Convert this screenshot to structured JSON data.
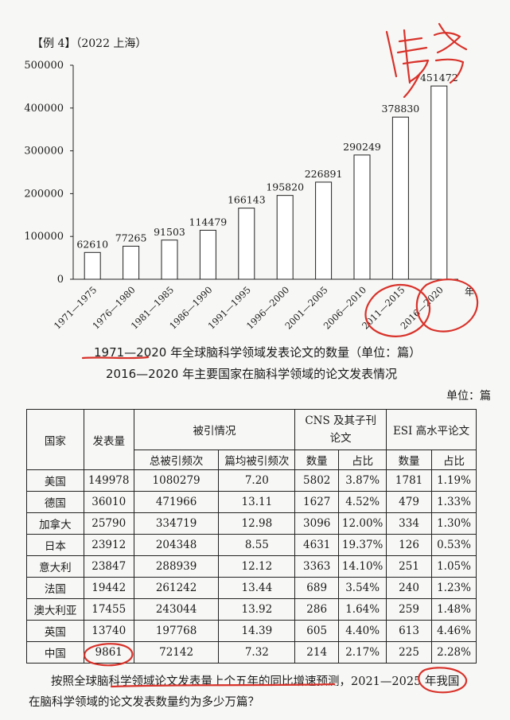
{
  "header": "【例 4】（2022  上海）",
  "chart_data": {
    "type": "bar",
    "title": "1971—2020 年全球脑科学领域发表论文的数量（单位：篇）",
    "categories": [
      "1971—1975",
      "1976—1980",
      "1981—1985",
      "1986—1990",
      "1991—1995",
      "1996—2000",
      "2001—2005",
      "2006—2010",
      "2011—2015",
      "2016—2020"
    ],
    "values": [
      62610,
      77265,
      91503,
      114479,
      166143,
      195820,
      226891,
      290249,
      378830,
      451472
    ],
    "x_suffix": "年",
    "yticks": [
      "0",
      "100000",
      "200000",
      "300000",
      "400000",
      "500000"
    ],
    "ylim": [
      0,
      500000
    ],
    "grid": false
  },
  "caption1": "1971—2020 年全球脑科学领域发表论文的数量（单位：篇）",
  "caption2": "2016—2020 年主要国家在脑科学领域的论文发表情况",
  "unit_label": "单位：篇",
  "table": {
    "col_country": "国家",
    "col_count": "发表量",
    "col_citations": "被引情况",
    "col_cns": "CNS 及其子刊论文",
    "col_esi": "ESI 高水平论文",
    "sub_total_cites": "总被引频次",
    "sub_avg_cites": "篇均被引频次",
    "sub_cns_count": "数量",
    "sub_cns_pct": "占比",
    "sub_esi_count": "数量",
    "sub_esi_pct": "占比",
    "rows": [
      [
        "美国",
        "149978",
        "1080279",
        "7.20",
        "5802",
        "3.87%",
        "1781",
        "1.19%"
      ],
      [
        "德国",
        "36010",
        "471966",
        "13.11",
        "1627",
        "4.52%",
        "479",
        "1.33%"
      ],
      [
        "加拿大",
        "25790",
        "334719",
        "12.98",
        "3096",
        "12.00%",
        "334",
        "1.30%"
      ],
      [
        "日本",
        "23912",
        "204348",
        "8.55",
        "4631",
        "19.37%",
        "126",
        "0.53%"
      ],
      [
        "意大利",
        "23847",
        "288939",
        "12.12",
        "3363",
        "14.10%",
        "251",
        "1.05%"
      ],
      [
        "法国",
        "19442",
        "261242",
        "13.44",
        "689",
        "3.54%",
        "240",
        "1.23%"
      ],
      [
        "澳大利亚",
        "17455",
        "243044",
        "13.92",
        "286",
        "1.64%",
        "259",
        "1.48%"
      ],
      [
        "英国",
        "13740",
        "197768",
        "14.39",
        "605",
        "4.40%",
        "613",
        "4.46%"
      ],
      [
        "中国",
        "9861",
        "72142",
        "7.32",
        "214",
        "2.17%",
        "225",
        "2.28%"
      ]
    ]
  },
  "question": {
    "line1": "按照全球脑科学领域论文发表量上个五年的同比增速预测，2021—2025 年我国",
    "line2": "在脑科学领域的论文发表数量约为多少万篇？"
  },
  "handwriting": "倍否",
  "ink_color": "#d8322a"
}
